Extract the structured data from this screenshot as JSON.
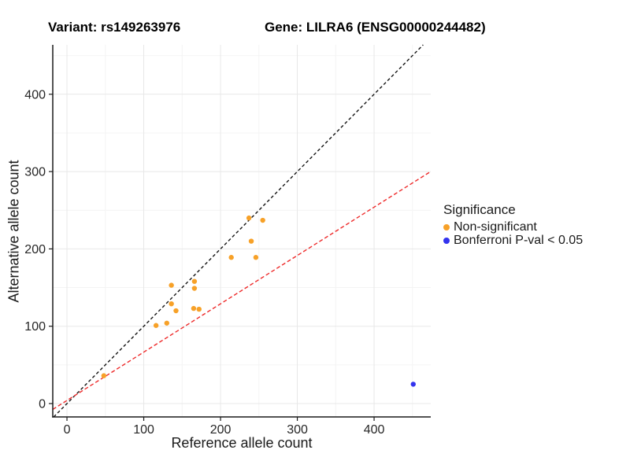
{
  "title": {
    "variant": "Variant: rs149263976",
    "gene": "Gene: LILRA6 (ENSG00000244482)"
  },
  "chart_data": {
    "type": "scatter",
    "xlabel": "Reference allele count",
    "ylabel": "Alternative allele count",
    "xlim": [
      -18.5,
      473.8
    ],
    "ylim": [
      -17.3,
      463.9
    ],
    "x_ticks": [
      0,
      100,
      200,
      300,
      400
    ],
    "y_ticks": [
      0,
      100,
      200,
      300,
      400
    ],
    "x_minor_gridlines": [
      50,
      150,
      250,
      350,
      450
    ],
    "y_minor_gridlines": [
      50,
      150,
      250,
      350,
      450
    ],
    "grid": "major and minor, light gray on white",
    "legend": {
      "title": "Significance",
      "position": "right"
    },
    "series": [
      {
        "name": "Non-significant",
        "color": "#F7A128",
        "points": [
          [
            48,
            36
          ],
          [
            116,
            101
          ],
          [
            130,
            104
          ],
          [
            136,
            129
          ],
          [
            142,
            120
          ],
          [
            136,
            153
          ],
          [
            165,
            123
          ],
          [
            172,
            122
          ],
          [
            166,
            149
          ],
          [
            166,
            158
          ],
          [
            214,
            189
          ],
          [
            246,
            189
          ],
          [
            240,
            210
          ],
          [
            237,
            240
          ],
          [
            255,
            237
          ]
        ]
      },
      {
        "name": "Bonferroni P-val < 0.05",
        "color": "#3333EE",
        "points": [
          [
            451,
            25
          ]
        ]
      }
    ],
    "reference_lines": [
      {
        "name": "identity-line",
        "slope": 1,
        "intercept": 0,
        "color": "#141414",
        "dash": "4 3"
      },
      {
        "name": "ratio-line",
        "slope": 0.625,
        "intercept": 4,
        "color": "#EE2B2B",
        "dash": "5 3"
      }
    ]
  },
  "colors": {
    "background": "#FFFFFF",
    "axis_line": "#1A1A1A",
    "tick_label": "#262626",
    "grid_major": "#E8E8E8",
    "grid_minor": "#F4F4F4"
  }
}
